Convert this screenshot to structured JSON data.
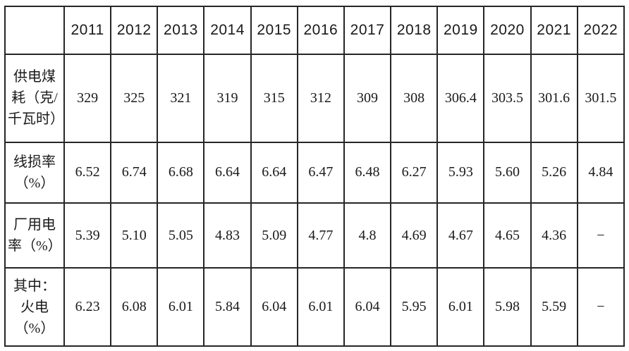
{
  "colors": {
    "background": "#ffffff",
    "border": "#262626",
    "text": "#1a1a1a"
  },
  "table": {
    "corner_label": "",
    "years": [
      "2011",
      "2012",
      "2013",
      "2014",
      "2015",
      "2016",
      "2017",
      "2018",
      "2019",
      "2020",
      "2021",
      "2022"
    ],
    "rows": [
      {
        "label": "供电煤耗（克/千瓦时）",
        "values": [
          "329",
          "325",
          "321",
          "319",
          "315",
          "312",
          "309",
          "308",
          "306.4",
          "303.5",
          "301.6",
          "301.5"
        ]
      },
      {
        "label": "线损率（%）",
        "values": [
          "6.52",
          "6.74",
          "6.68",
          "6.64",
          "6.64",
          "6.47",
          "6.48",
          "6.27",
          "5.93",
          "5.60",
          "5.26",
          "4.84"
        ]
      },
      {
        "label": "厂用电率（%）",
        "values": [
          "5.39",
          "5.10",
          "5.05",
          "4.83",
          "5.09",
          "4.77",
          "4.8",
          "4.69",
          "4.67",
          "4.65",
          "4.36",
          "−"
        ]
      },
      {
        "label": "其中：火电（%）",
        "values": [
          "6.23",
          "6.08",
          "6.01",
          "5.84",
          "6.04",
          "6.01",
          "6.04",
          "5.95",
          "6.01",
          "5.98",
          "5.59",
          "−"
        ]
      }
    ]
  },
  "chart_data": {
    "type": "table",
    "columns": [
      "",
      "2011",
      "2012",
      "2013",
      "2014",
      "2015",
      "2016",
      "2017",
      "2018",
      "2019",
      "2020",
      "2021",
      "2022"
    ],
    "rows": [
      [
        "供电煤耗（克/千瓦时）",
        "329",
        "325",
        "321",
        "319",
        "315",
        "312",
        "309",
        "308",
        "306.4",
        "303.5",
        "301.6",
        "301.5"
      ],
      [
        "线损率（%）",
        "6.52",
        "6.74",
        "6.68",
        "6.64",
        "6.64",
        "6.47",
        "6.48",
        "6.27",
        "5.93",
        "5.60",
        "5.26",
        "4.84"
      ],
      [
        "厂用电率（%）",
        "5.39",
        "5.10",
        "5.05",
        "4.83",
        "5.09",
        "4.77",
        "4.8",
        "4.69",
        "4.67",
        "4.65",
        "4.36",
        "−"
      ],
      [
        "其中：火电（%）",
        "6.23",
        "6.08",
        "6.01",
        "5.84",
        "6.04",
        "6.01",
        "6.04",
        "5.95",
        "6.01",
        "5.98",
        "5.59",
        "−"
      ]
    ]
  }
}
